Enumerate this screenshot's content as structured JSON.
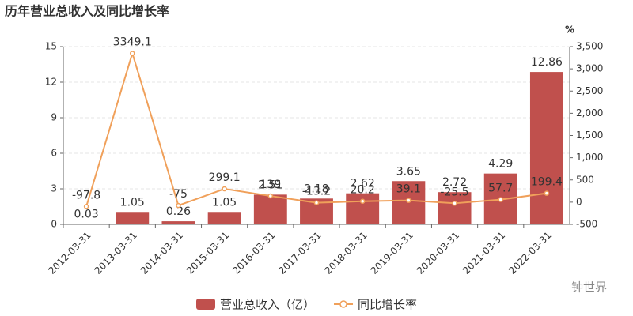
{
  "chart_data": {
    "type": "bar",
    "title": "历年营业总收入及同比增长率",
    "categories": [
      "2012-03-31",
      "2013-03-31",
      "2014-03-31",
      "2015-03-31",
      "2016-03-31",
      "2017-03-31",
      "2018-03-31",
      "2019-03-31",
      "2020-03-31",
      "2021-03-31",
      "2022-03-31"
    ],
    "series": [
      {
        "name": "营业总收入（亿）",
        "type": "bar",
        "color": "#c0504d",
        "axis": "y",
        "values": [
          0.03,
          1.05,
          0.26,
          1.05,
          2.51,
          2.18,
          2.62,
          3.65,
          2.72,
          4.29,
          12.86
        ]
      },
      {
        "name": "同比增长率",
        "type": "line",
        "color": "#f0a05a",
        "axis": "y2",
        "values": [
          -97.8,
          3349.1,
          -75,
          299.1,
          139,
          -13.2,
          20.2,
          39.1,
          -25.5,
          57.7,
          199.4
        ]
      }
    ],
    "ylim": [
      0,
      15
    ],
    "yticks": [
      0,
      3,
      6,
      9,
      12,
      15
    ],
    "y2lim": [
      -500,
      3500
    ],
    "y2ticks": [
      -500,
      0,
      500,
      {
        "value": 1000,
        "label": "1,000"
      },
      {
        "value": 1500,
        "label": "1,500"
      },
      {
        "value": 2000,
        "label": "2,000"
      },
      {
        "value": 2500,
        "label": "2,500"
      },
      {
        "value": 3000,
        "label": "3,000"
      },
      {
        "value": 3500,
        "label": "3,500"
      }
    ],
    "y2_unit": "%",
    "grid": true,
    "legend": "bottom",
    "watermark": "钟世界"
  }
}
